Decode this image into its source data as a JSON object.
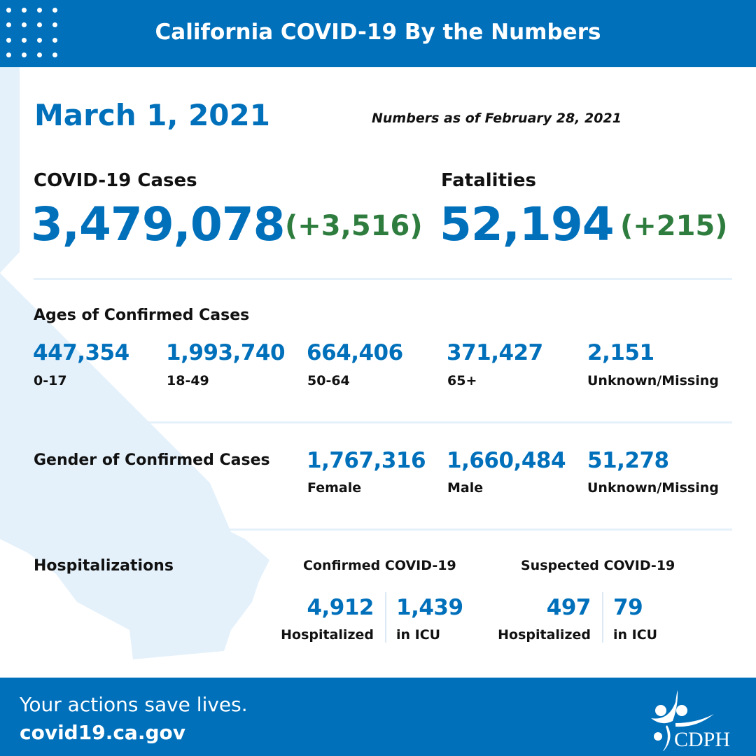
{
  "header": {
    "title": "California COVID-19 By the Numbers"
  },
  "date": "March 1, 2021",
  "as_of": "Numbers as of February 28, 2021",
  "cases": {
    "label": "COVID-19 Cases",
    "value": "3,479,078",
    "change": "(+3,516)"
  },
  "fatalities": {
    "label": "Fatalities",
    "value": "52,194",
    "change": "(+215)"
  },
  "ages": {
    "title": "Ages of Confirmed Cases",
    "items": [
      {
        "value": "447,354",
        "label": "0-17"
      },
      {
        "value": "1,993,740",
        "label": "18-49"
      },
      {
        "value": "664,406",
        "label": "50-64"
      },
      {
        "value": "371,427",
        "label": "65+"
      },
      {
        "value": "2,151",
        "label": "Unknown/Missing"
      }
    ]
  },
  "gender": {
    "title": "Gender of Confirmed Cases",
    "items": [
      {
        "value": "1,767,316",
        "label": "Female"
      },
      {
        "value": "1,660,484",
        "label": "Male"
      },
      {
        "value": "51,278",
        "label": "Unknown/Missing"
      }
    ]
  },
  "hosp": {
    "title": "Hospitalizations",
    "confirmed": {
      "title": "Confirmed COVID-19",
      "hospitalized": "4,912",
      "hospitalized_label": "Hospitalized",
      "icu": "1,439",
      "icu_label": "in ICU"
    },
    "suspected": {
      "title": "Suspected COVID-19",
      "hospitalized": "497",
      "hospitalized_label": "Hospitalized",
      "icu": "79",
      "icu_label": "in ICU"
    }
  },
  "footer": {
    "tagline": "Your actions save lives.",
    "url": "covid19.ca.gov",
    "logo_text": "CDPH"
  },
  "colors": {
    "brand_blue": "#0070bb",
    "green": "#2e7d3e",
    "map": "#e4f1fb"
  }
}
